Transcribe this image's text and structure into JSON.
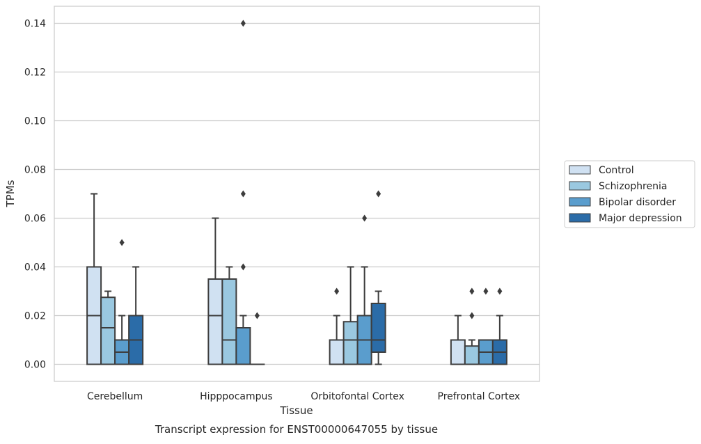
{
  "chart_data": {
    "type": "boxplot",
    "title": "",
    "caption": "Transcript expression for ENST00000647055 by tissue",
    "xlabel": "Tissue",
    "ylabel": "TPMs",
    "ylim": [
      -0.007,
      0.147
    ],
    "yticks": [
      0.0,
      0.02,
      0.04,
      0.06,
      0.08,
      0.1,
      0.12,
      0.14
    ],
    "ytick_labels": [
      "0.00",
      "0.02",
      "0.04",
      "0.06",
      "0.08",
      "0.10",
      "0.12",
      "0.14"
    ],
    "grid": "horizontal",
    "legend_position": "right",
    "categories": [
      "Cerebellum",
      "Hipppocampus",
      "Orbitofontal Cortex",
      "Prefrontal Cortex"
    ],
    "series": [
      {
        "name": "Control",
        "color": "#d0e1f2",
        "boxes": [
          {
            "whisker_low": 0.0,
            "q1": 0.0,
            "median": 0.02,
            "q3": 0.04,
            "whisker_high": 0.07,
            "outliers": []
          },
          {
            "whisker_low": 0.0,
            "q1": 0.0,
            "median": 0.02,
            "q3": 0.035,
            "whisker_high": 0.06,
            "outliers": []
          },
          {
            "whisker_low": 0.0,
            "q1": 0.0,
            "median": 0.0,
            "q3": 0.01,
            "whisker_high": 0.02,
            "outliers": [
              0.03
            ]
          },
          {
            "whisker_low": 0.0,
            "q1": 0.0,
            "median": 0.0,
            "q3": 0.01,
            "whisker_high": 0.02,
            "outliers": []
          }
        ]
      },
      {
        "name": "Schizophrenia",
        "color": "#9ac8e0",
        "boxes": [
          {
            "whisker_low": 0.0,
            "q1": 0.0,
            "median": 0.015,
            "q3": 0.0275,
            "whisker_high": 0.03,
            "outliers": []
          },
          {
            "whisker_low": 0.0,
            "q1": 0.0,
            "median": 0.01,
            "q3": 0.035,
            "whisker_high": 0.04,
            "outliers": []
          },
          {
            "whisker_low": 0.0,
            "q1": 0.0,
            "median": 0.01,
            "q3": 0.0175,
            "whisker_high": 0.04,
            "outliers": []
          },
          {
            "whisker_low": 0.0,
            "q1": 0.0,
            "median": 0.0,
            "q3": 0.0075,
            "whisker_high": 0.01,
            "outliers": [
              0.02,
              0.03
            ]
          }
        ]
      },
      {
        "name": "Bipolar disorder",
        "color": "#5a9dcd",
        "boxes": [
          {
            "whisker_low": 0.0,
            "q1": 0.0,
            "median": 0.005,
            "q3": 0.01,
            "whisker_high": 0.02,
            "outliers": [
              0.05
            ]
          },
          {
            "whisker_low": 0.0,
            "q1": 0.0,
            "median": 0.0,
            "q3": 0.015,
            "whisker_high": 0.02,
            "outliers": [
              0.04,
              0.07,
              0.14
            ]
          },
          {
            "whisker_low": 0.0,
            "q1": 0.0,
            "median": 0.01,
            "q3": 0.02,
            "whisker_high": 0.04,
            "outliers": [
              0.06
            ]
          },
          {
            "whisker_low": 0.0,
            "q1": 0.0,
            "median": 0.005,
            "q3": 0.01,
            "whisker_high": 0.01,
            "outliers": [
              0.03
            ]
          }
        ]
      },
      {
        "name": "Major depression",
        "color": "#2b6ca8",
        "boxes": [
          {
            "whisker_low": 0.0,
            "q1": 0.0,
            "median": 0.01,
            "q3": 0.02,
            "whisker_high": 0.04,
            "outliers": []
          },
          {
            "whisker_low": 0.0,
            "q1": 0.0,
            "median": 0.0,
            "q3": 0.0,
            "whisker_high": 0.0,
            "outliers": [
              0.02
            ]
          },
          {
            "whisker_low": 0.0,
            "q1": 0.005,
            "median": 0.01,
            "q3": 0.025,
            "whisker_high": 0.03,
            "outliers": [
              0.07
            ]
          },
          {
            "whisker_low": 0.0,
            "q1": 0.0,
            "median": 0.005,
            "q3": 0.01,
            "whisker_high": 0.02,
            "outliers": [
              0.03
            ]
          }
        ]
      }
    ]
  }
}
